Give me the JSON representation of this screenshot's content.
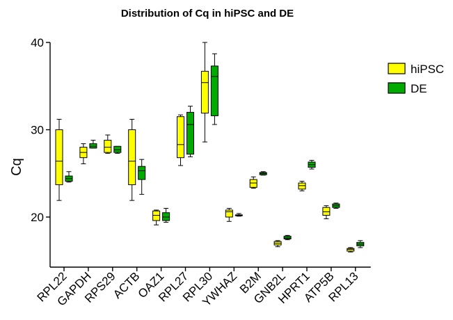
{
  "chart_data": {
    "type": "box",
    "title": "Distribution of Cq in hiPSC and DE",
    "xlabel": "",
    "ylabel": "Cq",
    "ylim": [
      14,
      41
    ],
    "yticks": [
      20,
      30,
      40
    ],
    "grid": false,
    "legend_position": "top-right",
    "categories": [
      "RPL22",
      "GAPDH",
      "RPS29",
      "ACTB",
      "OAZ1",
      "RPL27",
      "RPL30",
      "YWHAZ",
      "B2M",
      "GNB2L",
      "HPRT1",
      "ATP5B",
      "RPL13"
    ],
    "series": [
      {
        "name": "hiPSC",
        "color": "#ffff00",
        "boxes": [
          {
            "min": 21.9,
            "q1": 23.7,
            "median": 26.4,
            "q3": 30.0,
            "max": 31.2
          },
          {
            "min": 26.1,
            "q1": 26.8,
            "median": 27.4,
            "q3": 28.0,
            "max": 28.4
          },
          {
            "min": 27.3,
            "q1": 27.4,
            "median": 28.0,
            "q3": 28.8,
            "max": 29.4
          },
          {
            "min": 21.9,
            "q1": 23.7,
            "median": 26.4,
            "q3": 30.0,
            "max": 31.2
          },
          {
            "min": 19.1,
            "q1": 19.6,
            "median": 20.2,
            "q3": 20.7,
            "max": 20.8
          },
          {
            "min": 25.9,
            "q1": 26.8,
            "median": 28.3,
            "q3": 31.5,
            "max": 31.7
          },
          {
            "min": 28.6,
            "q1": 31.9,
            "median": 35.4,
            "q3": 36.7,
            "max": 40.0
          },
          {
            "min": 19.5,
            "q1": 20.0,
            "median": 20.6,
            "q3": 20.8,
            "max": 21.0
          },
          {
            "min": 23.3,
            "q1": 23.4,
            "median": 23.9,
            "q3": 24.3,
            "max": 24.6
          },
          {
            "min": 16.6,
            "q1": 16.8,
            "median": 17.0,
            "q3": 17.2,
            "max": 17.3
          },
          {
            "min": 23.0,
            "q1": 23.2,
            "median": 23.6,
            "q3": 23.9,
            "max": 24.1
          },
          {
            "min": 19.8,
            "q1": 20.2,
            "median": 20.6,
            "q3": 21.1,
            "max": 21.3
          },
          {
            "min": 16.0,
            "q1": 16.1,
            "median": 16.3,
            "q3": 16.4,
            "max": 16.5
          }
        ]
      },
      {
        "name": "DE",
        "color": "#00aa00",
        "boxes": [
          {
            "min": 24.0,
            "q1": 24.1,
            "median": 24.4,
            "q3": 24.7,
            "max": 25.2
          },
          {
            "min": 27.9,
            "q1": 27.9,
            "median": 28.1,
            "q3": 28.4,
            "max": 28.8
          },
          {
            "min": 27.3,
            "q1": 27.4,
            "median": 27.7,
            "q3": 28.1,
            "max": 28.1
          },
          {
            "min": 22.6,
            "q1": 24.3,
            "median": 25.3,
            "q3": 25.8,
            "max": 26.6
          },
          {
            "min": 19.4,
            "q1": 19.6,
            "median": 20.0,
            "q3": 20.5,
            "max": 21.0
          },
          {
            "min": 26.9,
            "q1": 27.2,
            "median": 30.6,
            "q3": 32.0,
            "max": 32.7
          },
          {
            "min": 30.6,
            "q1": 31.6,
            "median": 36.1,
            "q3": 37.3,
            "max": 38.7
          },
          {
            "min": 20.1,
            "q1": 20.15,
            "median": 20.2,
            "q3": 20.25,
            "max": 20.4
          },
          {
            "min": 24.8,
            "q1": 24.85,
            "median": 25.0,
            "q3": 25.1,
            "max": 25.2
          },
          {
            "min": 17.4,
            "q1": 17.5,
            "median": 17.6,
            "q3": 17.8,
            "max": 17.9
          },
          {
            "min": 25.5,
            "q1": 25.7,
            "median": 26.0,
            "q3": 26.3,
            "max": 26.5
          },
          {
            "min": 21.0,
            "q1": 21.1,
            "median": 21.3,
            "q3": 21.5,
            "max": 21.6
          },
          {
            "min": 16.5,
            "q1": 16.7,
            "median": 16.9,
            "q3": 17.1,
            "max": 17.3
          }
        ]
      }
    ]
  }
}
